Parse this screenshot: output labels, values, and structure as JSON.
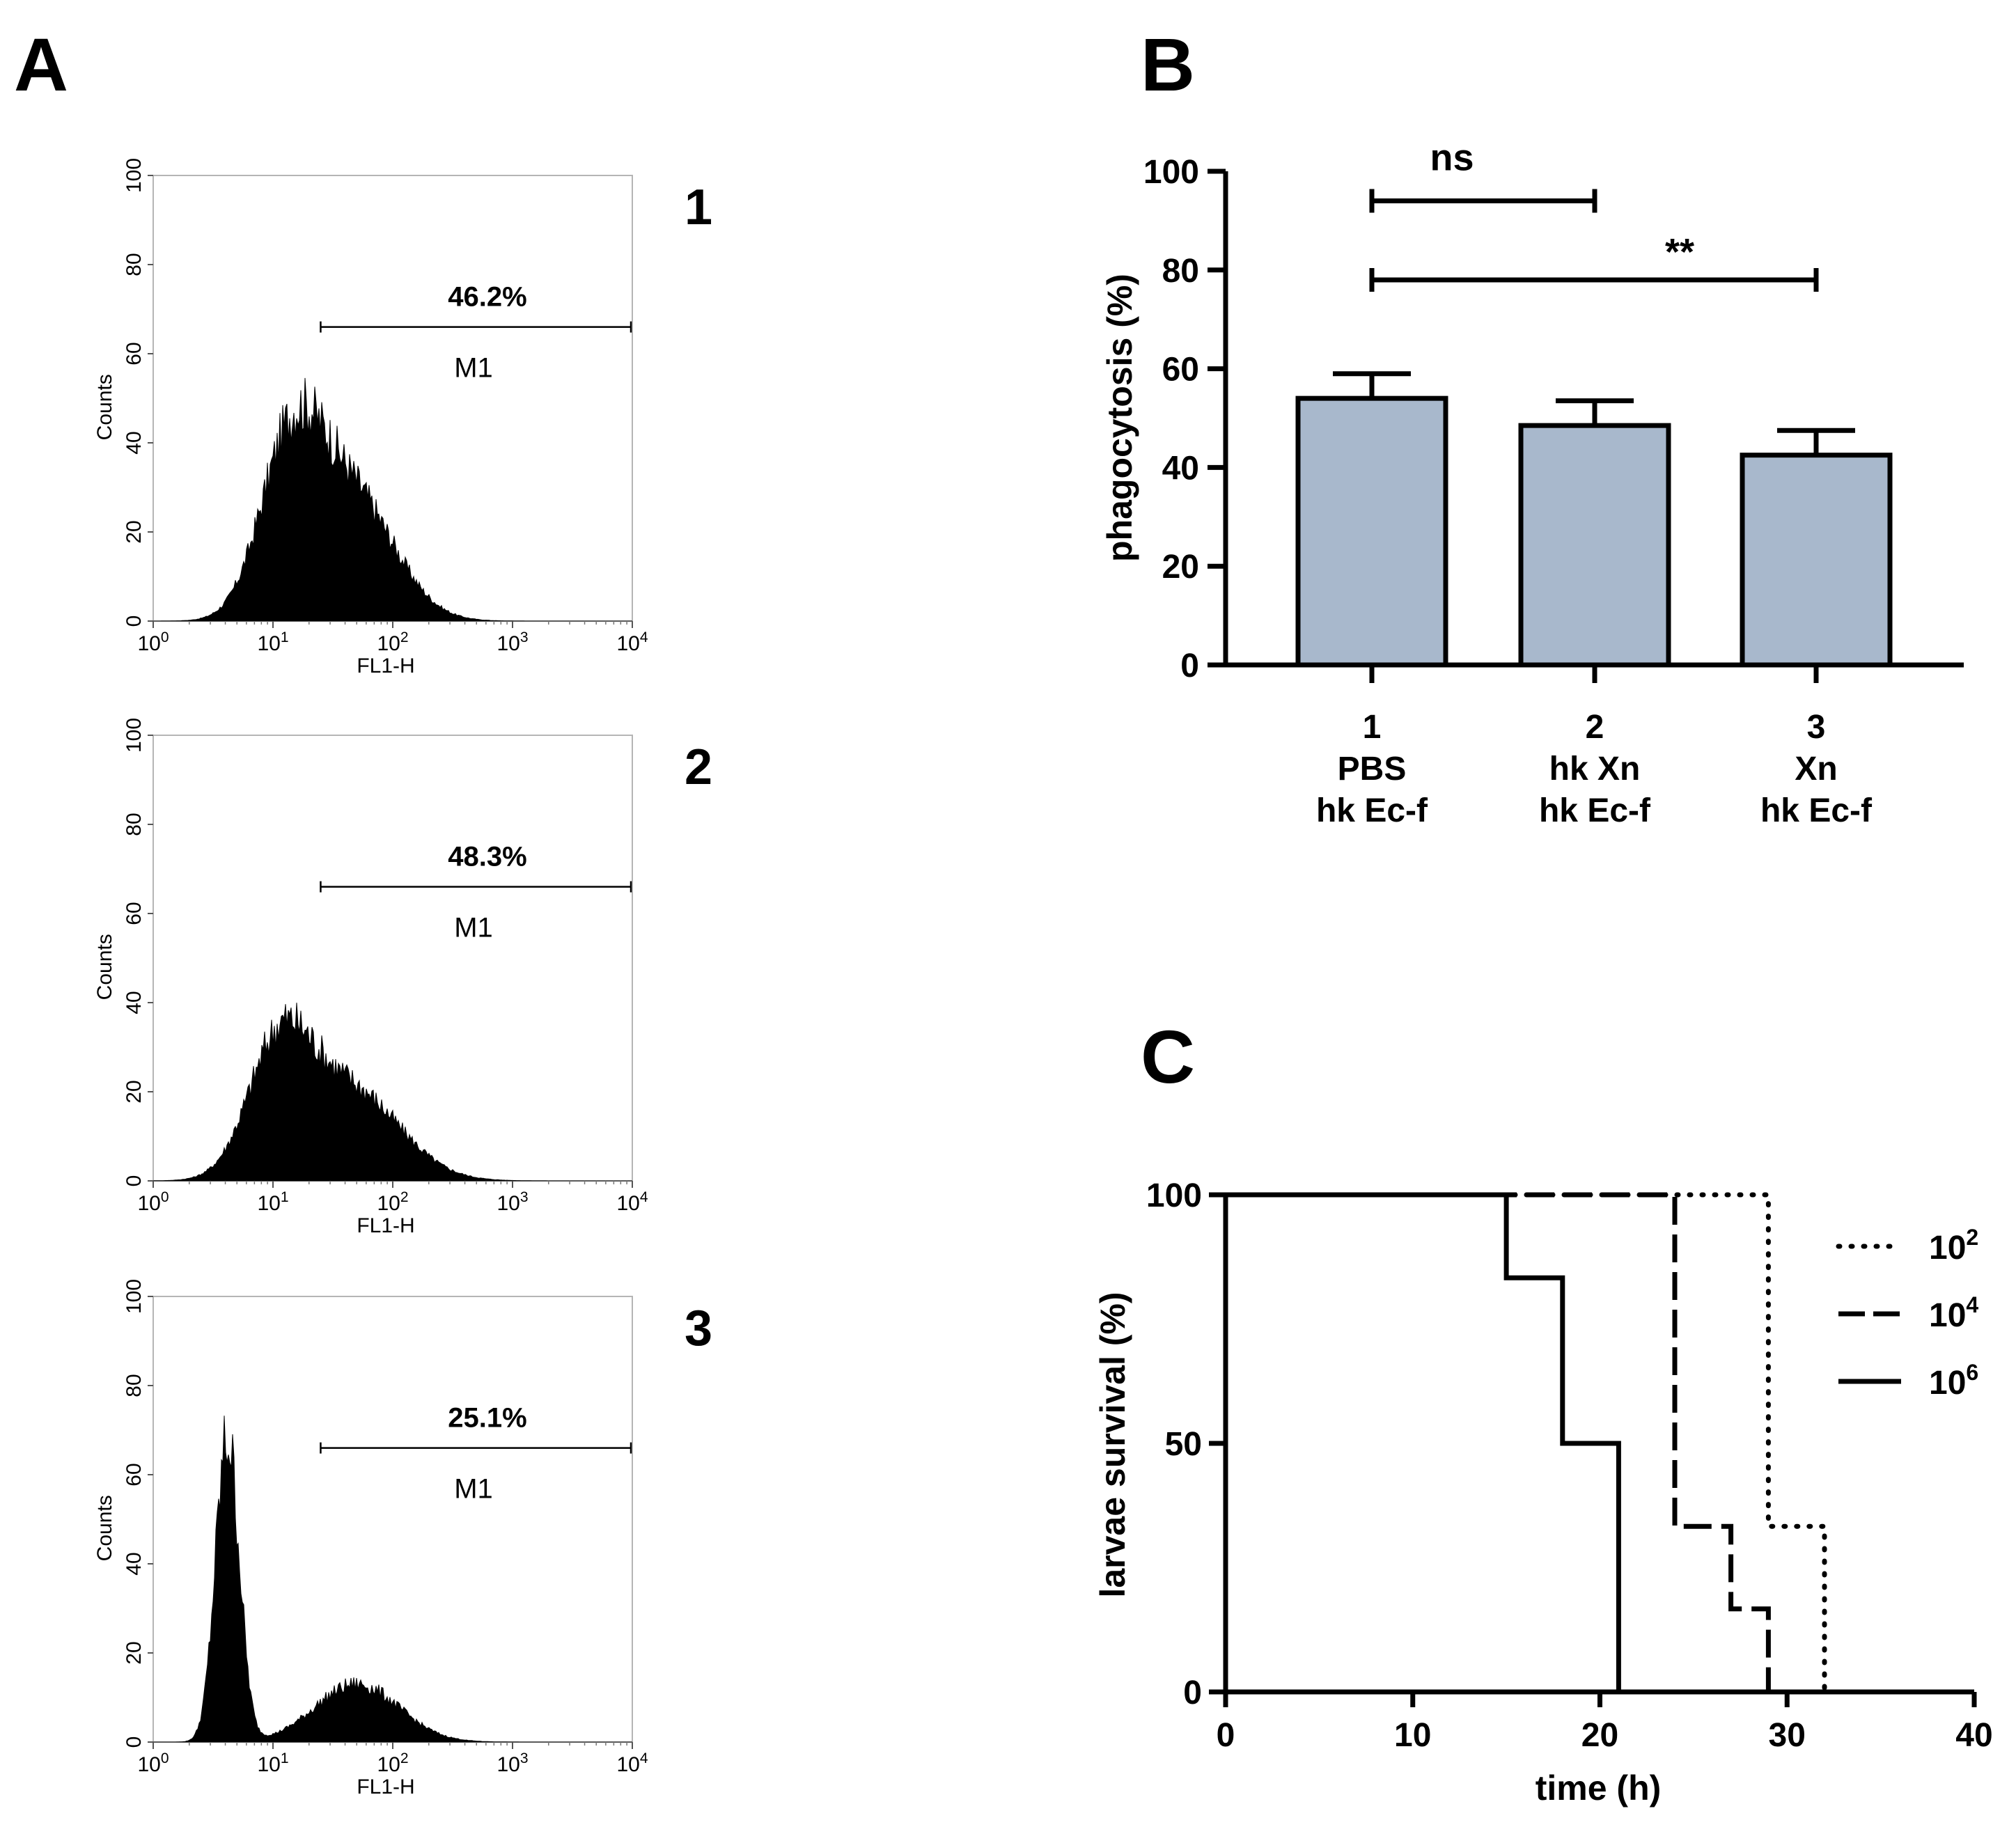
{
  "panel_letters": {
    "a": "A",
    "b": "B",
    "c": "C"
  },
  "chart_data": [
    {
      "panel": "A",
      "type": "histogram",
      "subplots": [
        {
          "label": "1",
          "gate_percent": "46.2%",
          "gate_name": "M1",
          "gate_range": [
            25,
            10000
          ],
          "peaks": [
            {
              "center_log": 1.15,
              "height": 36,
              "width_log": 0.26
            },
            {
              "center_log": 1.65,
              "height": 28,
              "width_log": 0.36
            }
          ]
        },
        {
          "label": "2",
          "gate_percent": "48.3%",
          "gate_name": "M1",
          "gate_range": [
            25,
            10000
          ],
          "peaks": [
            {
              "center_log": 1.05,
              "height": 27,
              "width_log": 0.26
            },
            {
              "center_log": 1.62,
              "height": 21,
              "width_log": 0.42
            }
          ]
        },
        {
          "label": "3",
          "gate_percent": "25.1%",
          "gate_name": "M1",
          "gate_range": [
            25,
            10000
          ],
          "peaks": [
            {
              "center_log": 0.62,
              "height": 68,
              "width_log": 0.1
            },
            {
              "center_log": 1.7,
              "height": 13,
              "width_log": 0.35
            }
          ]
        }
      ],
      "xlabel": "FL1-H",
      "ylabel": "Counts",
      "x_scale": "log",
      "x_ticks": [
        {
          "base": "10",
          "exp": "0"
        },
        {
          "base": "10",
          "exp": "1"
        },
        {
          "base": "10",
          "exp": "2"
        },
        {
          "base": "10",
          "exp": "3"
        },
        {
          "base": "10",
          "exp": "4"
        }
      ],
      "y_ticks": [
        "0",
        "20",
        "40",
        "60",
        "80",
        "100"
      ],
      "ylim": [
        0,
        100
      ]
    },
    {
      "panel": "B",
      "type": "bar",
      "categories": [
        {
          "lines": [
            "1",
            "PBS",
            "hk Ec-f"
          ]
        },
        {
          "lines": [
            "2",
            "hk Xn",
            "hk Ec-f"
          ]
        },
        {
          "lines": [
            "3",
            "Xn",
            "hk Ec-f"
          ]
        }
      ],
      "values": [
        54,
        48.5,
        42.5
      ],
      "errors": [
        5,
        5,
        5
      ],
      "bar_color": "#a8b8cc",
      "ylabel": "phagocytosis (%)",
      "ylim": [
        0,
        100
      ],
      "y_ticks": [
        "0",
        "20",
        "40",
        "60",
        "80",
        "100"
      ],
      "significance": [
        {
          "from": 0,
          "to": 1,
          "y": 94,
          "label": "ns"
        },
        {
          "from": 0,
          "to": 2,
          "y": 78,
          "label": "**"
        }
      ]
    },
    {
      "panel": "C",
      "type": "line",
      "xlabel": "time (h)",
      "ylabel": "larvae survival (%)",
      "xlim": [
        0,
        40
      ],
      "ylim": [
        0,
        100
      ],
      "x_ticks": [
        "0",
        "10",
        "20",
        "30",
        "40"
      ],
      "y_ticks": [
        "0",
        "50",
        "100"
      ],
      "series": [
        {
          "name_base": "10",
          "name_exp": "2",
          "style": "dotted",
          "x": [
            0,
            29,
            29,
            32,
            32
          ],
          "y": [
            100,
            100,
            33.3,
            33.3,
            0
          ]
        },
        {
          "name_base": "10",
          "name_exp": "4",
          "style": "dashed",
          "x": [
            0,
            24,
            24,
            27,
            27,
            29,
            29
          ],
          "y": [
            100,
            100,
            33.3,
            33.3,
            16.7,
            16.7,
            0
          ]
        },
        {
          "name_base": "10",
          "name_exp": "6",
          "style": "solid",
          "x": [
            0,
            15,
            15,
            18,
            18,
            21,
            21
          ],
          "y": [
            100,
            100,
            83.3,
            83.3,
            50,
            50,
            0
          ]
        }
      ]
    }
  ]
}
